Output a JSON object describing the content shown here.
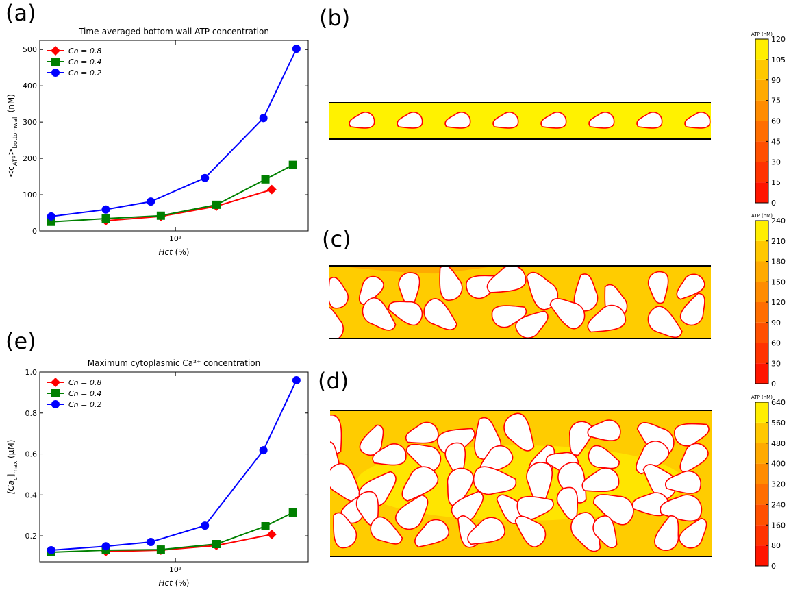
{
  "chart_data": [
    {
      "type": "line",
      "panel": "(a)",
      "title": "Time-averaged bottom wall ATP concentration",
      "xlabel": [
        {
          "text": "Hct",
          "style": "italic"
        },
        {
          "text": " (%)",
          "style": "normal"
        }
      ],
      "ylabel": [
        {
          "text": "<c",
          "style": "normal"
        },
        {
          "text": "ATP",
          "style": "sub"
        },
        {
          "text": ">",
          "style": "normal"
        },
        {
          "text": "bottomwall",
          "style": "sub"
        },
        {
          "text": " (nM)",
          "style": "normal"
        }
      ],
      "xscale": "log",
      "xlim": [
        2.2,
        44
      ],
      "xticks": [
        {
          "value": 10,
          "label": "10¹"
        }
      ],
      "ylim": [
        0,
        525
      ],
      "yticks": [
        0,
        100,
        200,
        300,
        400,
        500
      ],
      "legend": "upper left",
      "series": [
        {
          "name": "Cn =  0.8",
          "color": "#ff0000",
          "marker": "diamond",
          "x": [
            4.6,
            8.5,
            15.8,
            29.3
          ],
          "values": [
            28,
            40,
            68,
            114
          ]
        },
        {
          "name": "Cn =  0.4",
          "color": "#008000",
          "marker": "square",
          "x": [
            2.5,
            4.6,
            8.5,
            15.8,
            27.3,
            37.1
          ],
          "values": [
            25,
            34,
            42,
            72,
            142,
            182
          ]
        },
        {
          "name": "Cn =  0.2",
          "color": "#0000ff",
          "marker": "circle",
          "x": [
            2.5,
            4.6,
            7.6,
            13.9,
            26.7,
            38.6
          ],
          "values": [
            40,
            59,
            81,
            146,
            311,
            502
          ]
        }
      ]
    },
    {
      "type": "line",
      "panel": "(e)",
      "title": "Maximum cytoplasmic Ca²⁺ concentration",
      "xlabel": [
        {
          "text": "Hct",
          "style": "italic"
        },
        {
          "text": " (%)",
          "style": "normal"
        }
      ],
      "ylabel": [
        {
          "text": "[Ca",
          "style": "italic"
        },
        {
          "text": "c",
          "style": "sub"
        },
        {
          "text": "]",
          "style": "normal"
        },
        {
          "text": "max",
          "style": "sub"
        },
        {
          "text": " (μM)",
          "style": "normal"
        }
      ],
      "xscale": "log",
      "xlim": [
        2.2,
        44
      ],
      "xticks": [
        {
          "value": 10,
          "label": "10¹"
        }
      ],
      "ylim": [
        0.073,
        1.0
      ],
      "yticks": [
        0.2,
        0.4,
        0.6,
        0.8,
        {
          "value": 1,
          "label": "1.0"
        }
      ],
      "legend": "upper left",
      "series": [
        {
          "name": "Cn =  0.8",
          "color": "#ff0000",
          "marker": "diamond",
          "x": [
            4.6,
            8.5,
            15.8,
            29.3
          ],
          "values": [
            0.123,
            0.13,
            0.153,
            0.207
          ]
        },
        {
          "name": "Cn =  0.4",
          "color": "#008000",
          "marker": "square",
          "x": [
            2.5,
            4.6,
            8.5,
            15.8,
            27.3,
            37.1
          ],
          "values": [
            0.12,
            0.13,
            0.133,
            0.16,
            0.247,
            0.314
          ]
        },
        {
          "name": "Cn =  0.2",
          "color": "#0000ff",
          "marker": "circle",
          "x": [
            2.5,
            4.6,
            7.6,
            13.9,
            26.7,
            38.6
          ],
          "values": [
            0.13,
            0.149,
            0.17,
            0.25,
            0.618,
            0.96
          ]
        }
      ]
    },
    {
      "type": "colorbar",
      "panel": "(b)",
      "title": "ATP (nM)",
      "ylim": [
        0,
        120
      ],
      "yticks": [
        0,
        15,
        30,
        45,
        60,
        75,
        90,
        105,
        120
      ],
      "colors": [
        "#ff1500",
        "#ff3300",
        "#ff5000",
        "#ff6e00",
        "#ff8c00",
        "#ffaa00",
        "#ffc800",
        "#ffee00"
      ]
    },
    {
      "type": "colorbar",
      "panel": "(c)",
      "title": "ATP (nM)",
      "ylim": [
        0,
        240
      ],
      "yticks": [
        0,
        30,
        60,
        90,
        120,
        150,
        180,
        210,
        240
      ],
      "colors": [
        "#ff1500",
        "#ff3300",
        "#ff5000",
        "#ff6e00",
        "#ff8c00",
        "#ffaa00",
        "#ffc800",
        "#ffee00"
      ]
    },
    {
      "type": "colorbar",
      "panel": "(d)",
      "title": "ATP (nM)",
      "ylim": [
        0,
        640
      ],
      "yticks": [
        0,
        80,
        160,
        240,
        320,
        400,
        480,
        560,
        640
      ],
      "colors": [
        "#ff1500",
        "#ff3300",
        "#ff5000",
        "#ff6e00",
        "#ff8c00",
        "#ffaa00",
        "#ffc800",
        "#ffee00"
      ]
    }
  ]
}
